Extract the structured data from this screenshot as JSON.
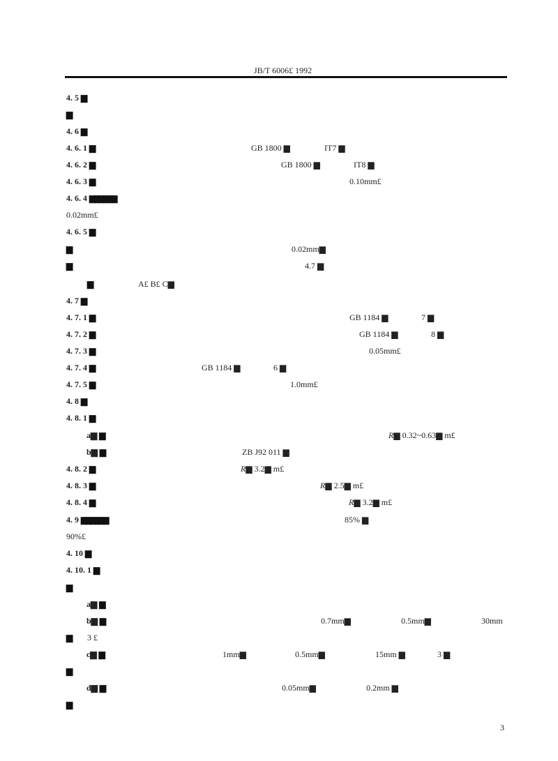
{
  "header": "JB/T 6006£ 1992",
  "page_number": "3",
  "g": "▆",
  "gg": "▆▆▆▆▆▆",
  "lines": {
    "l1": "4. 5",
    "l3": "4. 6",
    "l4": "4. 6. 1",
    "l4a": "GB  1800 ▆",
    "l4b": "IT7 ▆",
    "l5": "4. 6. 2",
    "l5a": "GB  1800 ▆",
    "l5b": "IT8 ▆",
    "l6": "4. 6. 3",
    "l6a": "0.10mm£",
    "l7": "4.  6.  4",
    "l8": "0.02mm£",
    "l9": "4. 6. 5",
    "l10a": "0.02mm▆",
    "l11a": "4.7 ▆",
    "l12a": "A£ B£ C▆",
    "l13": "4. 7",
    "l14": "4. 7. 1",
    "l14a": "GB  1184 ▆",
    "l14b": "7 ▆",
    "l15": "4. 7. 2",
    "l15a": "GB  1184 ▆",
    "l15b": "8 ▆",
    "l16": "4. 7. 3",
    "l16a": "0.05mm£",
    "l17": "4. 7. 4",
    "l17a": "GB  1184 ▆",
    "l17b": "6 ▆",
    "l18": "4. 7. 5",
    "l18a": "1.0mm£",
    "l19": "4. 8",
    "l20": "4. 8. 1",
    "l21": "a▆",
    "l21r": "R",
    "l21a": "▆   0.32~0.63▆  m£",
    "l22": "b▆",
    "l22a": "ZB  J92  011 ▆",
    "l23": "4. 8. 2",
    "l23a": "▆   3.2▆  m£",
    "l24": "4. 8. 3",
    "l24a": "▆   2.5▆  m£",
    "l25": "4. 8. 4",
    "l25a": "▆   3.2▆  m£",
    "l26": "4.  9",
    "l26a": "85% ▆",
    "l27": "90%£",
    "l28": "4. 10",
    "l29": "4.  10.  1",
    "l31": "a▆",
    "l32": "b▆",
    "l32a": "0.7mm▆",
    "l32b": "0.5mm▆",
    "l32c": "30mm",
    "l33a": "3 £",
    "l34": "c▆",
    "l34a": "1mm▆",
    "l34b": "0.5mm▆",
    "l34c": "15mm ▆",
    "l34d": "3 ▆",
    "l36": "d▆",
    "l36a": "0.05mm▆",
    "l36b": "0.2mm ▆"
  }
}
